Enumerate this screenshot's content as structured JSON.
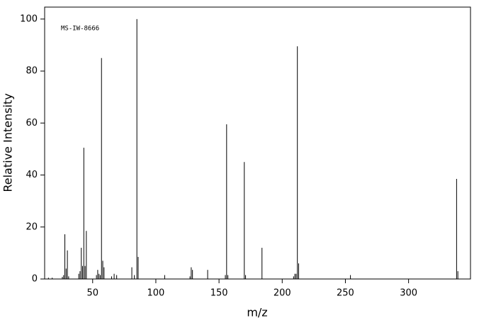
{
  "chart_data": {
    "type": "stem",
    "annotation": "MS-IW-8666",
    "xlabel": "m/z",
    "ylabel": "Relative Intensity",
    "x": [
      15,
      18,
      26,
      27,
      28,
      29,
      30,
      31,
      39,
      40,
      41,
      42,
      43,
      44,
      45,
      53,
      54,
      55,
      56,
      57,
      58,
      59,
      65,
      67,
      69,
      81,
      83,
      85,
      86,
      107,
      127,
      128,
      129,
      141,
      155,
      156,
      157,
      170,
      171,
      184,
      209,
      210,
      211,
      212,
      213,
      254,
      338,
      339
    ],
    "values": [
      0.5,
      0.5,
      0.8,
      1.5,
      17.2,
      4,
      11,
      1,
      2,
      3,
      12,
      5,
      50.5,
      5,
      18.5,
      1.5,
      3.5,
      2,
      1.5,
      85,
      7,
      4.5,
      1,
      2,
      1.5,
      4.5,
      1.5,
      100,
      8.5,
      1.5,
      1,
      4.5,
      3.5,
      3.5,
      1.5,
      59.5,
      1.5,
      45,
      1.5,
      12,
      1,
      2,
      2,
      89.5,
      6,
      1.5,
      38.5,
      3
    ],
    "color": "#000000",
    "xlim": [
      12,
      349
    ],
    "ylim": [
      0,
      104.6
    ],
    "xticks": [
      50,
      100,
      150,
      200,
      250,
      300
    ],
    "yticks": [
      0,
      20,
      40,
      60,
      80,
      100
    ]
  }
}
